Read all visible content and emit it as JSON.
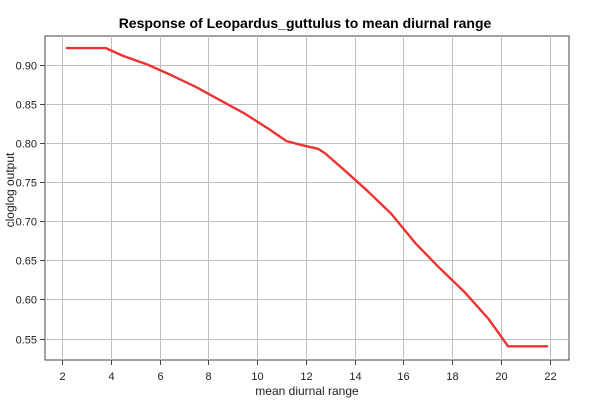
{
  "chart_data": {
    "type": "line",
    "title": "Response of Leopardus_guttulus to mean diurnal range",
    "xlabel": "mean diurnal range",
    "ylabel": "cloglog output",
    "xlim": [
      1.3,
      22.8
    ],
    "ylim": [
      0.5225,
      0.9375
    ],
    "x_ticks": [
      2,
      4,
      6,
      8,
      10,
      12,
      14,
      16,
      18,
      20,
      22
    ],
    "y_ticks": [
      0.55,
      0.6,
      0.65,
      0.7,
      0.75,
      0.8,
      0.85,
      0.9
    ],
    "y_tick_labels": [
      "0.55",
      "0.60",
      "0.65",
      "0.70",
      "0.75",
      "0.80",
      "0.85",
      "0.90"
    ],
    "grid": true,
    "series": [
      {
        "color": "#ee3333",
        "x": [
          2.2,
          3.8,
          4.5,
          5.5,
          6.5,
          7.5,
          8.5,
          9.5,
          10.5,
          11.2,
          11.8,
          12.5,
          12.8,
          13.5,
          14.5,
          15.5,
          16.5,
          17.5,
          18.5,
          19.5,
          20.3,
          21.9
        ],
        "y": [
          0.922,
          0.922,
          0.912,
          0.901,
          0.887,
          0.872,
          0.855,
          0.838,
          0.818,
          0.803,
          0.798,
          0.793,
          0.787,
          0.768,
          0.74,
          0.71,
          0.672,
          0.64,
          0.61,
          0.575,
          0.54,
          0.54
        ]
      }
    ]
  }
}
